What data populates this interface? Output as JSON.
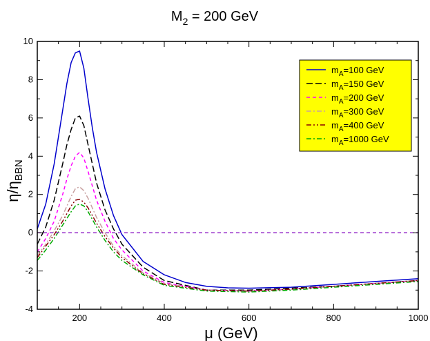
{
  "chart_data": {
    "type": "line",
    "title": {
      "main": "M",
      "sub": "2",
      "rest": " = 200 GeV"
    },
    "xlabel": "μ (GeV)",
    "ylabel": {
      "main": "η/η",
      "sub": "BBN"
    },
    "xlim": [
      100,
      1000
    ],
    "ylim": [
      -4,
      10
    ],
    "xticks": [
      200,
      400,
      600,
      800,
      1000
    ],
    "yticks": [
      -4,
      -2,
      0,
      2,
      4,
      6,
      8,
      10
    ],
    "legend_position": "top-right",
    "series": [
      {
        "label_main": "m",
        "label_sub": "A",
        "label_rest": "=100 GeV",
        "color": "#0000cc",
        "dash": "solid",
        "x": [
          100,
          120,
          140,
          160,
          170,
          180,
          190,
          200,
          210,
          220,
          230,
          240,
          260,
          280,
          300,
          350,
          400,
          450,
          500,
          550,
          600,
          700,
          800,
          900,
          1000
        ],
        "y": [
          0.2,
          1.5,
          3.6,
          6.4,
          7.8,
          8.9,
          9.4,
          9.5,
          8.6,
          7.0,
          5.5,
          4.2,
          2.3,
          0.9,
          -0.1,
          -1.5,
          -2.2,
          -2.6,
          -2.8,
          -2.88,
          -2.9,
          -2.85,
          -2.7,
          -2.55,
          -2.4
        ]
      },
      {
        "label_main": "m",
        "label_sub": "A",
        "label_rest": "=150 GeV",
        "color": "#000000",
        "dash": "long-dash",
        "x": [
          100,
          120,
          140,
          160,
          170,
          180,
          190,
          200,
          210,
          220,
          240,
          260,
          280,
          300,
          350,
          400,
          500,
          600,
          700,
          800,
          900,
          1000
        ],
        "y": [
          -0.6,
          0.3,
          1.7,
          3.6,
          4.6,
          5.4,
          6.0,
          6.1,
          5.6,
          4.6,
          2.6,
          1.2,
          0.2,
          -0.6,
          -1.8,
          -2.5,
          -3.0,
          -3.0,
          -2.9,
          -2.8,
          -2.65,
          -2.5
        ]
      },
      {
        "label_main": "m",
        "label_sub": "A",
        "label_rest": "=200 GeV",
        "color": "#ff00ff",
        "dash": "dash",
        "x": [
          100,
          120,
          140,
          160,
          170,
          180,
          190,
          200,
          210,
          220,
          240,
          260,
          280,
          300,
          350,
          400,
          500,
          600,
          700,
          800,
          900,
          1000
        ],
        "y": [
          -1.0,
          -0.3,
          0.6,
          2.0,
          2.8,
          3.5,
          4.0,
          4.2,
          3.9,
          3.2,
          1.7,
          0.6,
          -0.3,
          -0.9,
          -2.0,
          -2.6,
          -3.0,
          -3.05,
          -2.95,
          -2.8,
          -2.65,
          -2.5
        ]
      },
      {
        "label_main": "m",
        "label_sub": "A",
        "label_rest": "=300 GeV",
        "color": "#c8a0a0",
        "dash": "dash-dot",
        "x": [
          100,
          120,
          140,
          160,
          180,
          190,
          200,
          210,
          220,
          240,
          260,
          280,
          300,
          350,
          400,
          500,
          600,
          700,
          800,
          900,
          1000
        ],
        "y": [
          -1.2,
          -0.6,
          0.1,
          0.9,
          1.9,
          2.3,
          2.4,
          2.2,
          1.8,
          0.8,
          0.0,
          -0.7,
          -1.2,
          -2.1,
          -2.65,
          -3.0,
          -3.05,
          -2.95,
          -2.8,
          -2.65,
          -2.5
        ]
      },
      {
        "label_main": "m",
        "label_sub": "A",
        "label_rest": "=400 GeV",
        "color": "#880000",
        "dash": "dash-dot-dot",
        "x": [
          100,
          120,
          140,
          160,
          180,
          190,
          200,
          210,
          220,
          240,
          260,
          280,
          300,
          350,
          400,
          500,
          600,
          700,
          800,
          900,
          1000
        ],
        "y": [
          -1.3,
          -0.7,
          -0.1,
          0.6,
          1.4,
          1.7,
          1.75,
          1.6,
          1.3,
          0.5,
          -0.2,
          -0.8,
          -1.3,
          -2.15,
          -2.7,
          -3.0,
          -3.05,
          -2.95,
          -2.8,
          -2.65,
          -2.5
        ]
      },
      {
        "label_main": "m",
        "label_sub": "A",
        "label_rest": "=1000 GeV",
        "color": "#00aa00",
        "dash": "dash-dot",
        "x": [
          100,
          120,
          140,
          160,
          180,
          190,
          200,
          210,
          220,
          240,
          260,
          280,
          300,
          350,
          400,
          500,
          600,
          700,
          800,
          900,
          1000
        ],
        "y": [
          -1.45,
          -0.9,
          -0.3,
          0.4,
          1.1,
          1.4,
          1.5,
          1.4,
          1.1,
          0.3,
          -0.4,
          -1.0,
          -1.45,
          -2.2,
          -2.75,
          -3.05,
          -3.1,
          -3.0,
          -2.85,
          -2.7,
          -2.55
        ]
      },
      {
        "label_main": "",
        "label_sub": "",
        "label_rest": "",
        "color": "#9933cc",
        "dash": "dash",
        "legend": false,
        "x": [
          100,
          1000
        ],
        "y": [
          0,
          0
        ]
      }
    ]
  }
}
